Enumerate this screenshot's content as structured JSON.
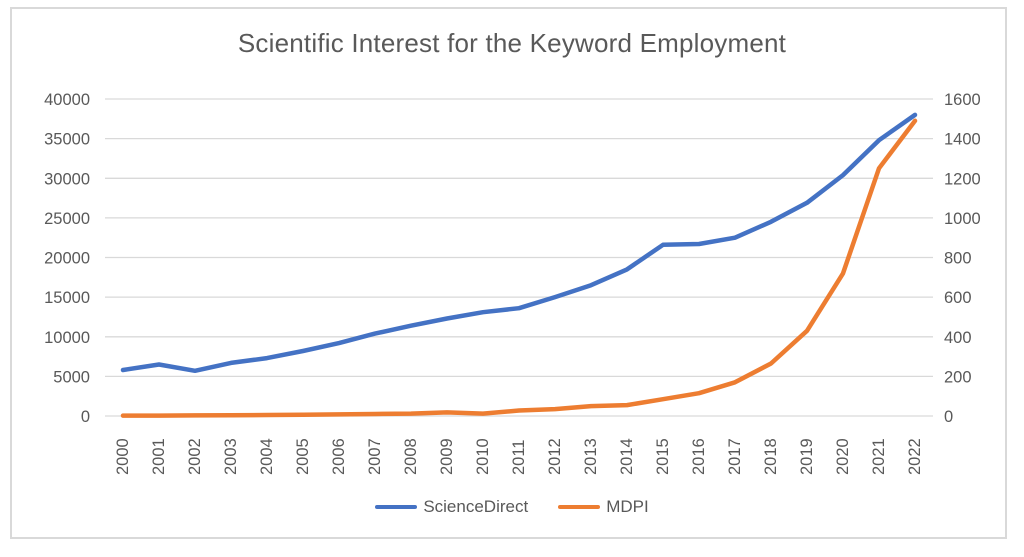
{
  "colors": {
    "text": "#595959",
    "gridline": "#D9D9D9",
    "frame_border": "#D9D9D9",
    "background": "#FFFFFF",
    "sciencedirect_line": "#4472C4",
    "mdpi_line": "#ED7D31"
  },
  "chart_data": {
    "type": "line",
    "title": "Scientific Interest for the Keyword Employment",
    "categories": [
      "2000",
      "2001",
      "2002",
      "2003",
      "2004",
      "2005",
      "2006",
      "2007",
      "2008",
      "2009",
      "2010",
      "2011",
      "2012",
      "2013",
      "2014",
      "2015",
      "2016",
      "2017",
      "2018",
      "2019",
      "2020",
      "2021",
      "2022"
    ],
    "series": [
      {
        "name": "ScienceDirect",
        "axis": "left",
        "color": "#4472C4",
        "values": [
          5800,
          6500,
          5700,
          6700,
          7300,
          8200,
          9200,
          10400,
          11400,
          12300,
          13100,
          13600,
          15000,
          16500,
          18500,
          21600,
          21700,
          22500,
          24500,
          26900,
          30400,
          34800,
          38000
        ]
      },
      {
        "name": "MDPI",
        "axis": "right",
        "color": "#ED7D31",
        "values": [
          2,
          2,
          3,
          4,
          5,
          6,
          8,
          10,
          12,
          18,
          12,
          28,
          35,
          50,
          55,
          85,
          115,
          170,
          265,
          430,
          720,
          1250,
          1490
        ]
      }
    ],
    "left_axis": {
      "ylim": [
        0,
        40000
      ],
      "ticks": [
        0,
        5000,
        10000,
        15000,
        20000,
        25000,
        30000,
        35000,
        40000
      ]
    },
    "right_axis": {
      "ylim": [
        0,
        1600
      ],
      "ticks": [
        0,
        200,
        400,
        600,
        800,
        1000,
        1200,
        1400,
        1600
      ]
    },
    "grid": true,
    "legend_position": "bottom",
    "xlabel": "",
    "ylabel": ""
  }
}
